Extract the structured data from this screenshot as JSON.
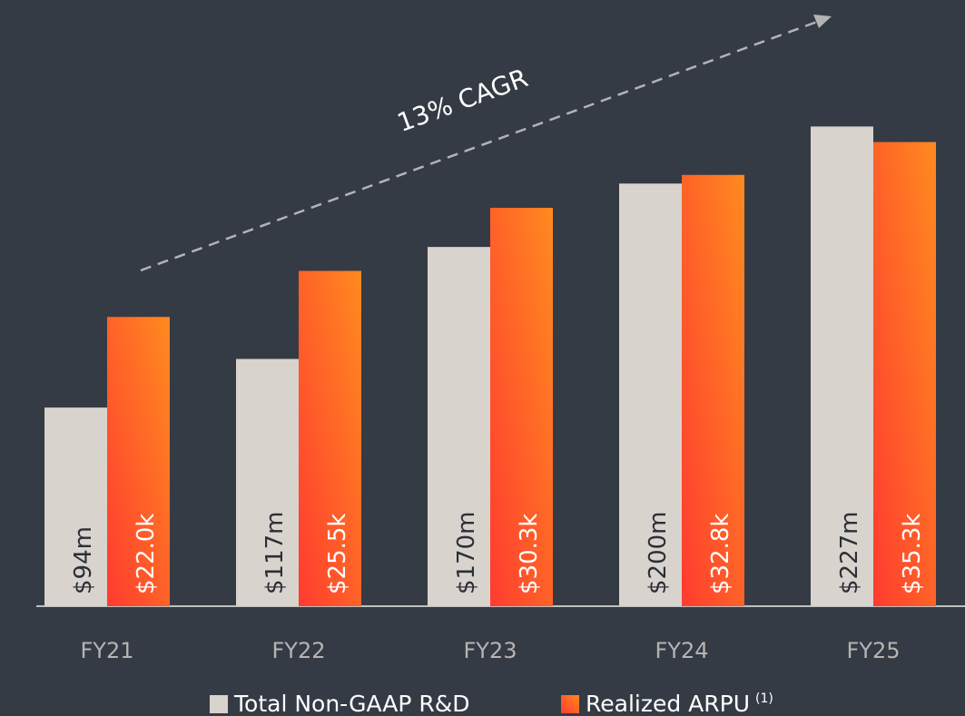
{
  "chart_data": {
    "type": "bar",
    "categories": [
      "FY21",
      "FY22",
      "FY23",
      "FY24",
      "FY25"
    ],
    "series": [
      {
        "name": "Total Non-GAAP R&D",
        "color": "#d9d3cd",
        "values": [
          94,
          117,
          170,
          200,
          227
        ],
        "value_labels": [
          "$94m",
          "$117m",
          "$170m",
          "$200m",
          "$227m"
        ]
      },
      {
        "name": "Realized ARPU",
        "legend_note": "(1)",
        "color": "#ff3b30",
        "gradient_to": "#ff8a1f",
        "axis": "y2",
        "values": [
          22.0,
          25.5,
          30.3,
          32.8,
          35.3
        ],
        "value_labels": [
          "$22.0k",
          "$25.5k",
          "$30.3k",
          "$32.8k",
          "$35.3k"
        ]
      }
    ],
    "ylim": [
      0,
      280
    ],
    "y2lim": [
      0,
      45
    ],
    "annotation": "13% CAGR",
    "legend": "bottom"
  }
}
